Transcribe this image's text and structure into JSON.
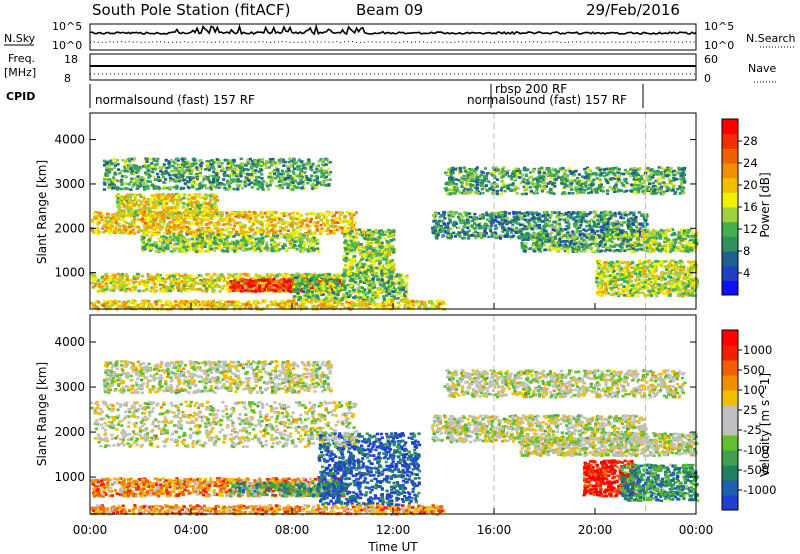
{
  "header": {
    "station": "South Pole Station (fitACF)",
    "beam": "Beam 09",
    "date": "29/Feb/2016"
  },
  "strip_panels": {
    "nsky_label": "N.Sky",
    "nsky_ticks": [
      "10^5",
      "10^0"
    ],
    "nsearch_label": "N.Search",
    "nsearch_ticks": [
      "10^5",
      "10^0"
    ],
    "freq_label": "Freq.",
    "freq_unit": "[MHz]",
    "freq_ticks": [
      "18",
      "8"
    ],
    "nave_label": "Nave",
    "nave_ticks": [
      "60",
      "0"
    ],
    "cpid_label": "CPID",
    "cpid_segments": [
      {
        "label": "normalsound (fast) 157 RF",
        "start_hour": 0,
        "end_hour": 16
      },
      {
        "label": "rbsp 200 RF",
        "start_hour": 16,
        "end_hour": 22
      },
      {
        "label": "normalsound (fast) 157 RF",
        "start_hour": 16,
        "end_hour": 22
      }
    ]
  },
  "chart_data": [
    {
      "type": "heatmap",
      "name": "power",
      "xlabel": "",
      "ylabel": "Slant Range [km]",
      "xlim": [
        0,
        24
      ],
      "ylim": [
        180,
        4600
      ],
      "yticks": [
        "1000",
        "2000",
        "3000",
        "4000"
      ],
      "colorbar_label": "Power [dB]",
      "colorbar_ticks": [
        "4",
        "8",
        "12",
        "16",
        "20",
        "24",
        "28"
      ],
      "colors": [
        "#1010ff",
        "#2040c0",
        "#206090",
        "#309060",
        "#40b050",
        "#a0d040",
        "#f0f000",
        "#f0c000",
        "#f09000",
        "#f06000",
        "#f03000",
        "#ff0000"
      ],
      "bands": [
        {
          "t0": 0.0,
          "t1": 10.0,
          "r0": 600,
          "r1": 1000,
          "level": 0.55
        },
        {
          "t0": 5.5,
          "t1": 10.0,
          "r0": 600,
          "r1": 900,
          "level": 0.9
        },
        {
          "t0": 8.0,
          "t1": 12.5,
          "r0": 400,
          "r1": 1000,
          "level": 0.4
        },
        {
          "t0": 0.0,
          "t1": 10.5,
          "r0": 1900,
          "r1": 2400,
          "level": 0.6
        },
        {
          "t0": 1.0,
          "t1": 5.0,
          "r0": 2300,
          "r1": 2800,
          "level": 0.55
        },
        {
          "t0": 2.0,
          "t1": 9.0,
          "r0": 1500,
          "r1": 1900,
          "level": 0.45
        },
        {
          "t0": 10.0,
          "t1": 12.0,
          "r0": 1000,
          "r1": 2000,
          "level": 0.45
        },
        {
          "t0": 13.5,
          "t1": 22.0,
          "r0": 1800,
          "r1": 2400,
          "level": 0.3
        },
        {
          "t0": 17.0,
          "t1": 21.5,
          "r0": 1500,
          "r1": 1900,
          "level": 0.35
        },
        {
          "t0": 20.0,
          "t1": 24.0,
          "r0": 500,
          "r1": 1300,
          "level": 0.5
        },
        {
          "t0": 21.5,
          "t1": 24.0,
          "r0": 1500,
          "r1": 2000,
          "level": 0.45
        },
        {
          "t0": 0.5,
          "t1": 9.5,
          "r0": 2900,
          "r1": 3600,
          "level": 0.35
        },
        {
          "t0": 14.0,
          "t1": 23.5,
          "r0": 2800,
          "r1": 3400,
          "level": 0.35
        },
        {
          "t0": 0.0,
          "t1": 14.0,
          "r0": 200,
          "r1": 400,
          "level": 0.6
        }
      ]
    },
    {
      "type": "heatmap",
      "name": "velocity",
      "xlabel": "Time UT",
      "ylabel": "Slant Range [km]",
      "xlim": [
        0,
        24
      ],
      "ylim": [
        180,
        4600
      ],
      "xticks": [
        "00:00",
        "04:00",
        "08:00",
        "12:00",
        "16:00",
        "20:00",
        "00:00"
      ],
      "yticks": [
        "1000",
        "2000",
        "3000",
        "4000"
      ],
      "colorbar_label": "Velocity [m s^-1]",
      "colorbar_ticks": [
        "1000",
        "500",
        "100",
        "25",
        "-25",
        "-100",
        "-500",
        "-1000"
      ],
      "colors": [
        "#2040d0",
        "#2060b0",
        "#208060",
        "#40a050",
        "#60c030",
        "#c0c0c0",
        "#c0c0c0",
        "#f0c000",
        "#f09000",
        "#f06000",
        "#f02000",
        "#ff0000"
      ],
      "bands": [
        {
          "t0": 0.0,
          "t1": 10.0,
          "r0": 600,
          "r1": 1000,
          "level": 0.72
        },
        {
          "t0": 5.5,
          "t1": 10.0,
          "r0": 600,
          "r1": 900,
          "level": 0.3
        },
        {
          "t0": 9.0,
          "t1": 13.0,
          "r0": 400,
          "r1": 2000,
          "level": 0.1
        },
        {
          "t0": 0.0,
          "t1": 10.5,
          "r0": 1700,
          "r1": 2700,
          "level": 0.5
        },
        {
          "t0": 13.5,
          "t1": 22.0,
          "r0": 1800,
          "r1": 2400,
          "level": 0.5
        },
        {
          "t0": 17.0,
          "t1": 21.5,
          "r0": 1500,
          "r1": 1900,
          "level": 0.5
        },
        {
          "t0": 19.5,
          "t1": 21.5,
          "r0": 600,
          "r1": 1400,
          "level": 0.92
        },
        {
          "t0": 21.0,
          "t1": 24.0,
          "r0": 500,
          "r1": 1300,
          "level": 0.25
        },
        {
          "t0": 21.5,
          "t1": 24.0,
          "r0": 1500,
          "r1": 2000,
          "level": 0.5
        },
        {
          "t0": 0.5,
          "t1": 9.5,
          "r0": 2900,
          "r1": 3600,
          "level": 0.5
        },
        {
          "t0": 14.0,
          "t1": 23.5,
          "r0": 2800,
          "r1": 3400,
          "level": 0.5
        },
        {
          "t0": 0.0,
          "t1": 14.0,
          "r0": 200,
          "r1": 400,
          "level": 0.7
        }
      ]
    }
  ]
}
